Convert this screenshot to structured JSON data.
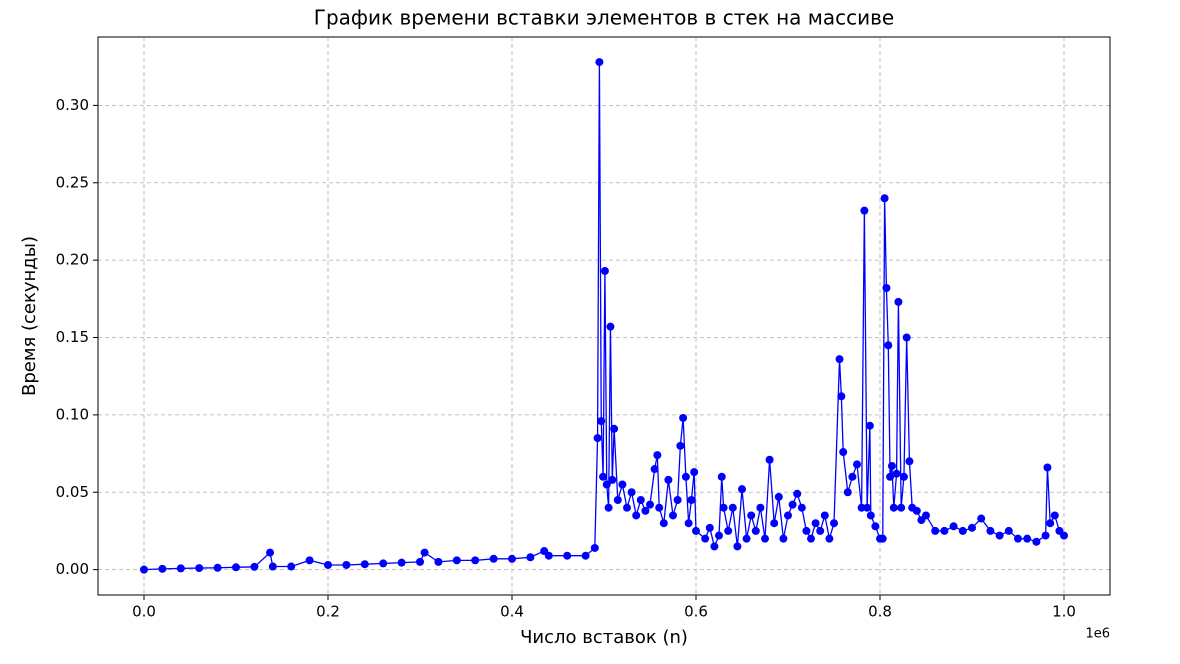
{
  "chart_data": {
    "type": "line",
    "title": "График времени вставки элементов в стек на массиве",
    "x_label": "Число вставок (n)",
    "y_label": "Время (секунды)",
    "x_offset_label": "1e6",
    "color": "#0000ff",
    "markers": true,
    "grid": true,
    "xlim": [
      -0.05,
      1.05
    ],
    "ylim": [
      -0.0164,
      0.3442
    ],
    "xticks": [
      {
        "value": 0,
        "label": "0.0"
      },
      0.2,
      0.4,
      0.6,
      0.8,
      {
        "value": 1,
        "label": "1.0"
      }
    ],
    "yticks": [
      {
        "value": 0,
        "label": "0.00"
      },
      0.05,
      {
        "value": 0.1,
        "label": "0.10"
      },
      0.15,
      {
        "value": 0.2,
        "label": "0.20"
      },
      0.25,
      {
        "value": 0.3,
        "label": "0.30"
      }
    ],
    "x": [
      0.0,
      0.02,
      0.04,
      0.06,
      0.08,
      0.1,
      0.12,
      0.137,
      0.14,
      0.16,
      0.18,
      0.2,
      0.22,
      0.24,
      0.26,
      0.28,
      0.3,
      0.305,
      0.32,
      0.34,
      0.36,
      0.38,
      0.4,
      0.42,
      0.435,
      0.44,
      0.46,
      0.48,
      0.49,
      0.493,
      0.495,
      0.497,
      0.499,
      0.501,
      0.503,
      0.505,
      0.507,
      0.509,
      0.511,
      0.515,
      0.52,
      0.525,
      0.53,
      0.535,
      0.54,
      0.545,
      0.55,
      0.555,
      0.558,
      0.56,
      0.565,
      0.57,
      0.575,
      0.58,
      0.583,
      0.586,
      0.589,
      0.592,
      0.595,
      0.598,
      0.6,
      0.61,
      0.615,
      0.62,
      0.625,
      0.628,
      0.63,
      0.635,
      0.64,
      0.645,
      0.65,
      0.655,
      0.66,
      0.665,
      0.67,
      0.675,
      0.68,
      0.685,
      0.69,
      0.695,
      0.7,
      0.705,
      0.71,
      0.715,
      0.72,
      0.725,
      0.73,
      0.735,
      0.74,
      0.745,
      0.75,
      0.756,
      0.758,
      0.76,
      0.765,
      0.77,
      0.775,
      0.78,
      0.783,
      0.786,
      0.789,
      0.79,
      0.795,
      0.8,
      0.803,
      0.805,
      0.807,
      0.809,
      0.811,
      0.813,
      0.815,
      0.818,
      0.82,
      0.823,
      0.826,
      0.829,
      0.832,
      0.835,
      0.84,
      0.845,
      0.85,
      0.86,
      0.87,
      0.88,
      0.89,
      0.9,
      0.91,
      0.92,
      0.93,
      0.94,
      0.95,
      0.96,
      0.97,
      0.98,
      0.982,
      0.985,
      0.99,
      0.995,
      1.0
    ],
    "values": [
      0.0,
      0.0005,
      0.0008,
      0.001,
      0.0012,
      0.0015,
      0.0018,
      0.011,
      0.002,
      0.002,
      0.006,
      0.003,
      0.003,
      0.0035,
      0.004,
      0.0045,
      0.005,
      0.011,
      0.005,
      0.006,
      0.006,
      0.007,
      0.007,
      0.008,
      0.012,
      0.009,
      0.009,
      0.009,
      0.014,
      0.085,
      0.328,
      0.096,
      0.06,
      0.193,
      0.055,
      0.04,
      0.157,
      0.058,
      0.091,
      0.045,
      0.055,
      0.04,
      0.05,
      0.035,
      0.045,
      0.038,
      0.042,
      0.065,
      0.074,
      0.04,
      0.03,
      0.058,
      0.035,
      0.045,
      0.08,
      0.098,
      0.06,
      0.03,
      0.045,
      0.063,
      0.025,
      0.02,
      0.027,
      0.015,
      0.022,
      0.06,
      0.04,
      0.025,
      0.04,
      0.015,
      0.052,
      0.02,
      0.035,
      0.025,
      0.04,
      0.02,
      0.071,
      0.03,
      0.047,
      0.02,
      0.035,
      0.042,
      0.049,
      0.04,
      0.025,
      0.02,
      0.03,
      0.025,
      0.035,
      0.02,
      0.03,
      0.136,
      0.112,
      0.076,
      0.05,
      0.06,
      0.068,
      0.04,
      0.232,
      0.04,
      0.093,
      0.035,
      0.028,
      0.02,
      0.02,
      0.24,
      0.182,
      0.145,
      0.06,
      0.067,
      0.04,
      0.062,
      0.173,
      0.04,
      0.06,
      0.15,
      0.07,
      0.04,
      0.038,
      0.032,
      0.035,
      0.025,
      0.025,
      0.028,
      0.025,
      0.027,
      0.033,
      0.025,
      0.022,
      0.025,
      0.02,
      0.02,
      0.018,
      0.022,
      0.066,
      0.03,
      0.035,
      0.025,
      0.022
    ]
  }
}
